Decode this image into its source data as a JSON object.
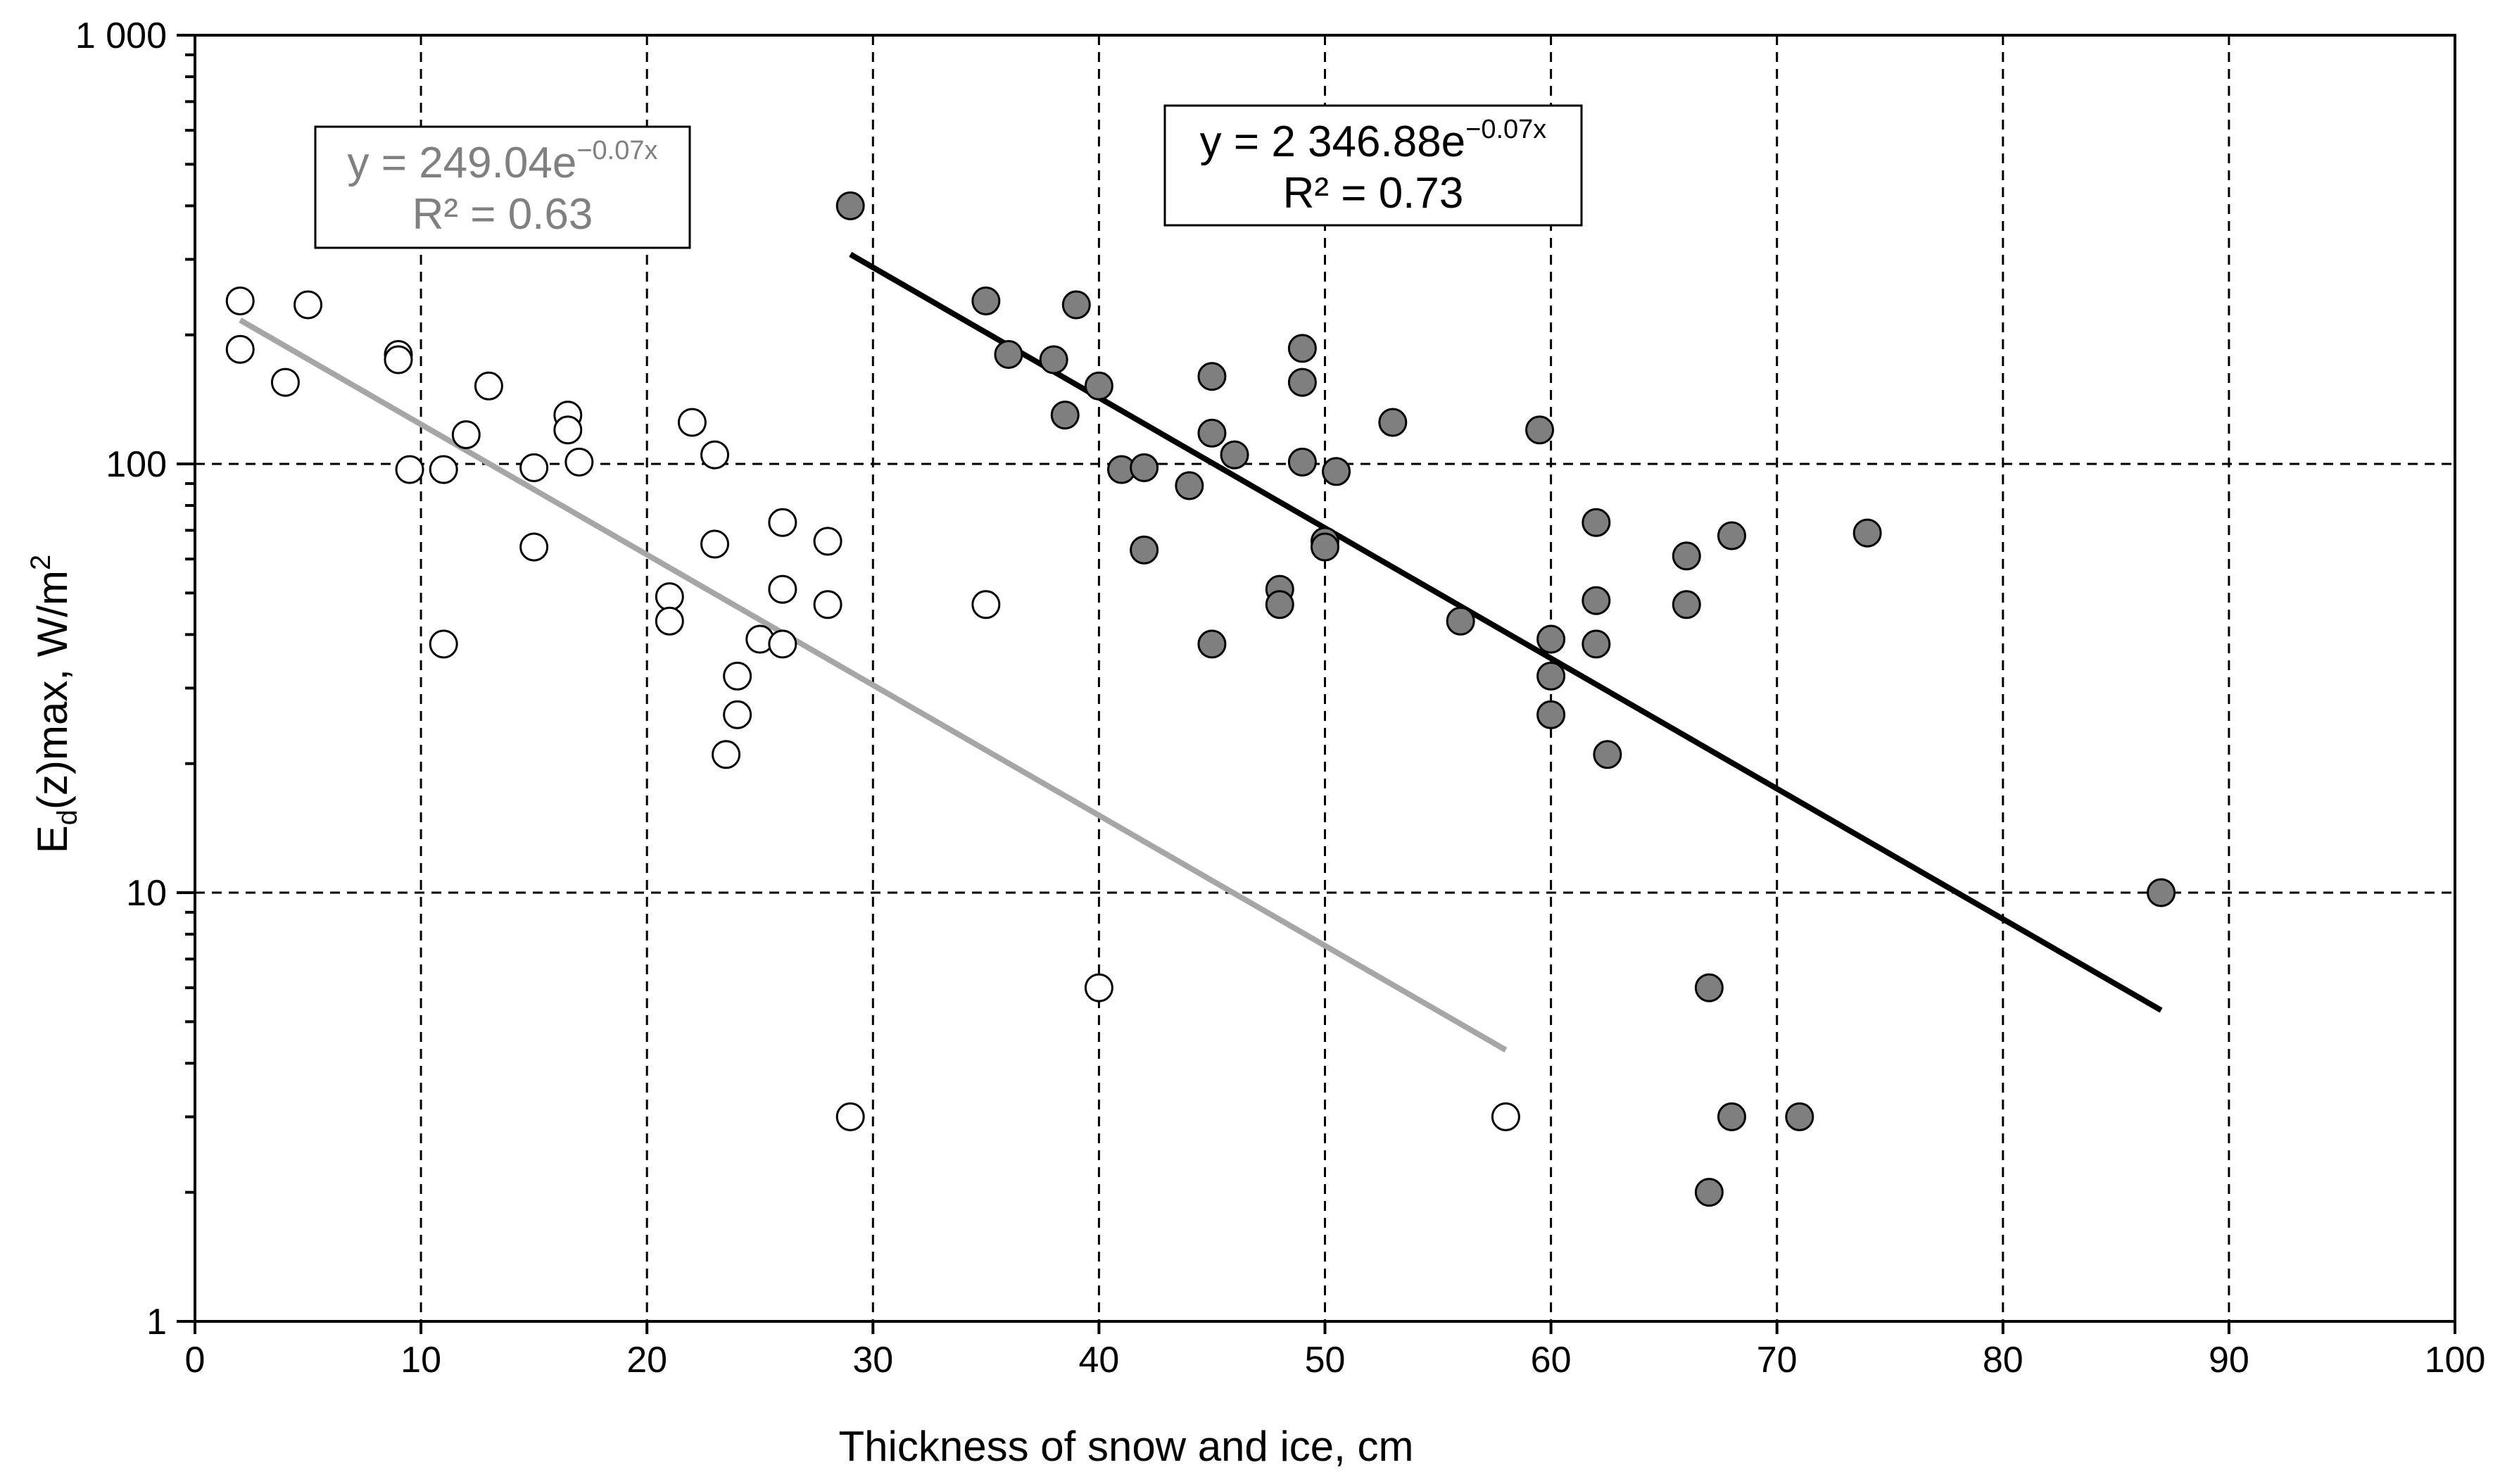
{
  "chart_data": {
    "type": "scatter",
    "title": "",
    "xlabel": "Thickness of snow and ice, cm",
    "ylabel": {
      "base": "E",
      "sub": "d",
      "rest": "(z)max,  W/m",
      "sup": "2"
    },
    "xlim": [
      0,
      100
    ],
    "ylim": [
      1,
      1000
    ],
    "yscale": "log",
    "grid": true,
    "xticks": [
      0,
      10,
      20,
      30,
      40,
      50,
      60,
      70,
      80,
      90,
      100
    ],
    "xtick_labels": [
      "0",
      "10",
      "20",
      "30",
      "40",
      "50",
      "60",
      "70",
      "80",
      "90",
      "100"
    ],
    "yticks": [
      1,
      10,
      100,
      1000
    ],
    "ytick_labels": [
      "1",
      "10",
      "100",
      "1 000"
    ],
    "series": [
      {
        "name": "light",
        "marker_fill": "#ffffff",
        "marker_stroke": "#000000",
        "points": [
          [
            2,
            240
          ],
          [
            2,
            185
          ],
          [
            4,
            155
          ],
          [
            5,
            235
          ],
          [
            9,
            180
          ],
          [
            9,
            175
          ],
          [
            9.5,
            97
          ],
          [
            11,
            97
          ],
          [
            11,
            38
          ],
          [
            12,
            117
          ],
          [
            13,
            152
          ],
          [
            15,
            98
          ],
          [
            15,
            64
          ],
          [
            16.5,
            130
          ],
          [
            16.5,
            120
          ],
          [
            17,
            101
          ],
          [
            21,
            49
          ],
          [
            21,
            43
          ],
          [
            22,
            125
          ],
          [
            23,
            105
          ],
          [
            23,
            65
          ],
          [
            23.5,
            21
          ],
          [
            24,
            32
          ],
          [
            24,
            26
          ],
          [
            25,
            39
          ],
          [
            26,
            73
          ],
          [
            26,
            51
          ],
          [
            26,
            38
          ],
          [
            28,
            66
          ],
          [
            28,
            47
          ],
          [
            29,
            3
          ],
          [
            35,
            47
          ],
          [
            40,
            6
          ],
          [
            58,
            3
          ]
        ]
      },
      {
        "name": "dark",
        "marker_fill": "#7f7f7f",
        "marker_stroke": "#000000",
        "points": [
          [
            29,
            400
          ],
          [
            35,
            240
          ],
          [
            36,
            180
          ],
          [
            38,
            175
          ],
          [
            38.5,
            130
          ],
          [
            39,
            235
          ],
          [
            40,
            152
          ],
          [
            41,
            97
          ],
          [
            42,
            98
          ],
          [
            42,
            63
          ],
          [
            44,
            89
          ],
          [
            45,
            160
          ],
          [
            45,
            118
          ],
          [
            45,
            38
          ],
          [
            46,
            105
          ],
          [
            48,
            51
          ],
          [
            48,
            47
          ],
          [
            49,
            186
          ],
          [
            49,
            155
          ],
          [
            49,
            101
          ],
          [
            50,
            66
          ],
          [
            50,
            64
          ],
          [
            50.5,
            96
          ],
          [
            53,
            125
          ],
          [
            56,
            43
          ],
          [
            59.5,
            120
          ],
          [
            60,
            39
          ],
          [
            60,
            32
          ],
          [
            60,
            26
          ],
          [
            62,
            73
          ],
          [
            62,
            48
          ],
          [
            62,
            38
          ],
          [
            62.5,
            21
          ],
          [
            66,
            61
          ],
          [
            66,
            47
          ],
          [
            67,
            6
          ],
          [
            67,
            2
          ],
          [
            68,
            68
          ],
          [
            68,
            3
          ],
          [
            71,
            3
          ],
          [
            74,
            69
          ],
          [
            87,
            10
          ]
        ]
      }
    ],
    "trendlines": [
      {
        "series": "light",
        "color": "#a6a6a6",
        "a": 249.04,
        "b": -0.07,
        "x_range": [
          2,
          58
        ],
        "equation_prefix": "y = 249.04e",
        "equation_exponent": "−0.07x",
        "r2_label": "R² = 0.63"
      },
      {
        "series": "dark",
        "color": "#000000",
        "a": 2346.88,
        "b": -0.07,
        "x_range": [
          29,
          87
        ],
        "equation_prefix": "y = 2 346.88e",
        "equation_exponent": "−0.07x",
        "r2_label": "R² = 0.73"
      }
    ]
  }
}
